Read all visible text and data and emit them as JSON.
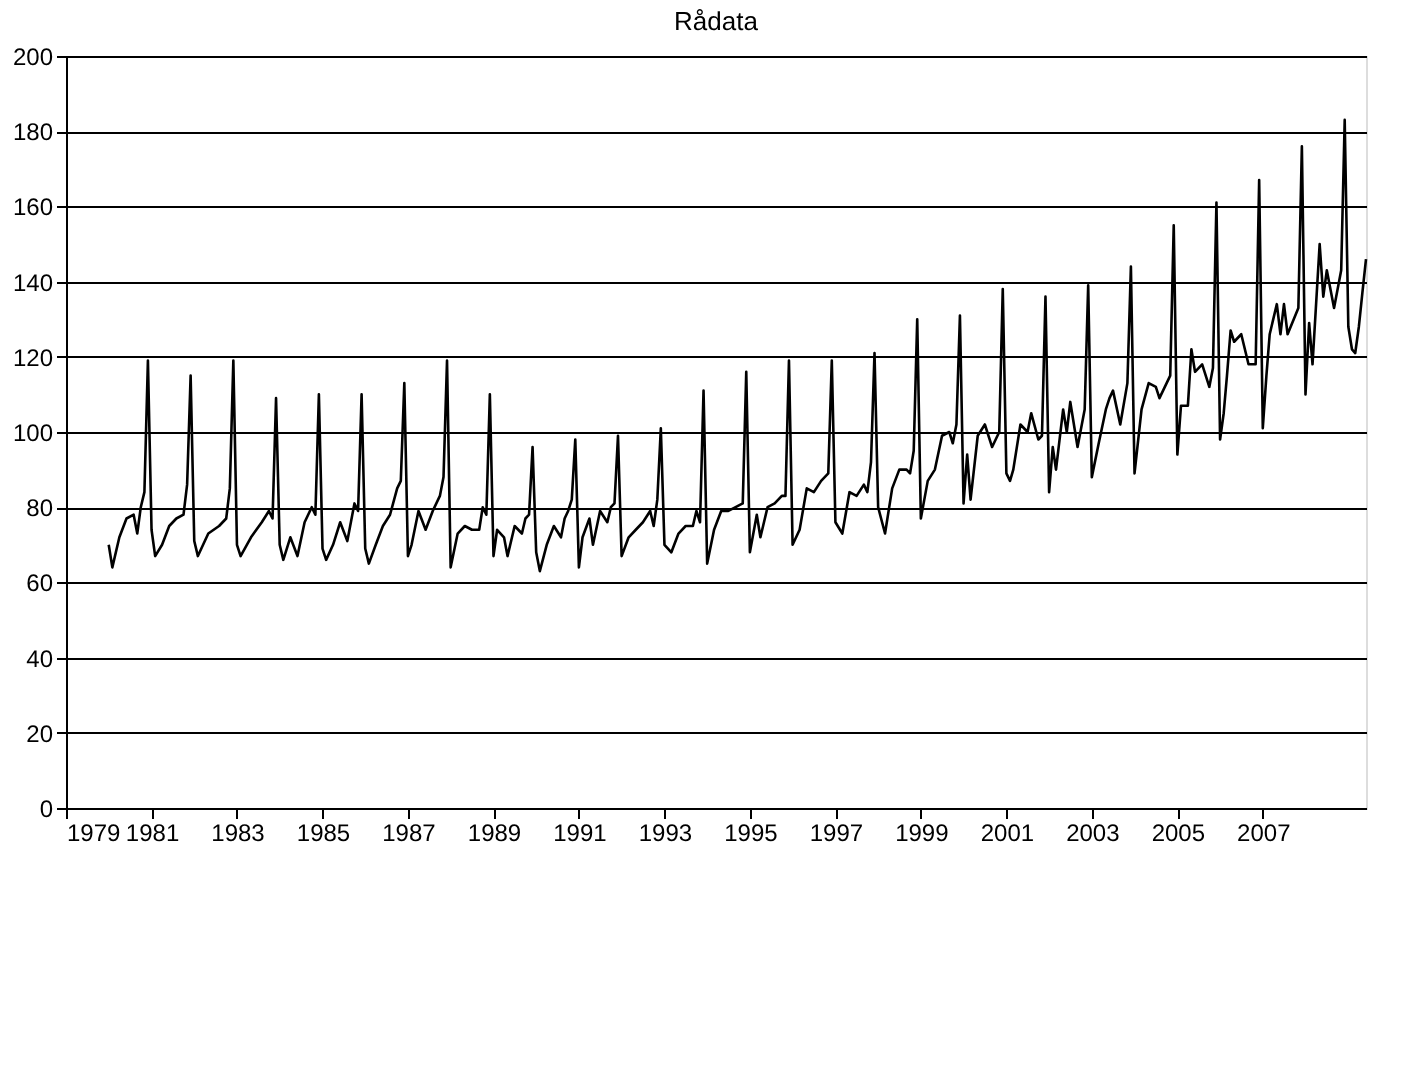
{
  "chart_data": {
    "type": "line",
    "title": "Rådata",
    "x": [
      "1980-01",
      "1980-02",
      "1980-04",
      "1980-06",
      "1980-08",
      "1980-09",
      "1980-10",
      "1980-11",
      "1980-12",
      "1981-01",
      "1981-02",
      "1981-04",
      "1981-06",
      "1981-08",
      "1981-10",
      "1981-11",
      "1981-12",
      "1982-01",
      "1982-02",
      "1982-05",
      "1982-08",
      "1982-10",
      "1982-11",
      "1982-12",
      "1983-01",
      "1983-02",
      "1983-05",
      "1983-08",
      "1983-10",
      "1983-11",
      "1983-12",
      "1984-01",
      "1984-02",
      "1984-04",
      "1984-06",
      "1984-08",
      "1984-10",
      "1984-11",
      "1984-12",
      "1985-01",
      "1985-02",
      "1985-04",
      "1985-06",
      "1985-08",
      "1985-10",
      "1985-11",
      "1985-12",
      "1986-01",
      "1986-02",
      "1986-04",
      "1986-06",
      "1986-08",
      "1986-10",
      "1986-11",
      "1986-12",
      "1987-01",
      "1987-02",
      "1987-04",
      "1987-06",
      "1987-08",
      "1987-10",
      "1987-11",
      "1987-12",
      "1988-01",
      "1988-03",
      "1988-05",
      "1988-07",
      "1988-09",
      "1988-10",
      "1988-11",
      "1988-12",
      "1989-01",
      "1989-02",
      "1989-04",
      "1989-05",
      "1989-07",
      "1989-09",
      "1989-10",
      "1989-11",
      "1989-12",
      "1990-01",
      "1990-02",
      "1990-04",
      "1990-06",
      "1990-08",
      "1990-09",
      "1990-10",
      "1990-11",
      "1990-12",
      "1991-01",
      "1991-02",
      "1991-04",
      "1991-05",
      "1991-07",
      "1991-09",
      "1991-10",
      "1991-11",
      "1991-12",
      "1992-01",
      "1992-03",
      "1992-05",
      "1992-07",
      "1992-09",
      "1992-10",
      "1992-11",
      "1992-12",
      "1993-01",
      "1993-03",
      "1993-05",
      "1993-07",
      "1993-09",
      "1993-10",
      "1993-11",
      "1993-12",
      "1994-01",
      "1994-03",
      "1994-05",
      "1994-07",
      "1994-09",
      "1994-11",
      "1994-12",
      "1995-01",
      "1995-03",
      "1995-04",
      "1995-06",
      "1995-08",
      "1995-10",
      "1995-11",
      "1995-12",
      "1996-01",
      "1996-03",
      "1996-05",
      "1996-07",
      "1996-09",
      "1996-11",
      "1996-12",
      "1997-01",
      "1997-03",
      "1997-05",
      "1997-07",
      "1997-09",
      "1997-10",
      "1997-11",
      "1997-12",
      "1998-01",
      "1998-03",
      "1998-05",
      "1998-07",
      "1998-09",
      "1998-10",
      "1998-11",
      "1998-12",
      "1999-01",
      "1999-03",
      "1999-05",
      "1999-07",
      "1999-09",
      "1999-10",
      "1999-11",
      "1999-12",
      "2000-01",
      "2000-02",
      "2000-03",
      "2000-05",
      "2000-07",
      "2000-09",
      "2000-11",
      "2000-12",
      "2001-01",
      "2001-02",
      "2001-03",
      "2001-05",
      "2001-07",
      "2001-08",
      "2001-10",
      "2001-11",
      "2001-12",
      "2002-01",
      "2002-02",
      "2002-03",
      "2002-05",
      "2002-06",
      "2002-07",
      "2002-09",
      "2002-11",
      "2002-12",
      "2003-01",
      "2003-03",
      "2003-05",
      "2003-06",
      "2003-07",
      "2003-09",
      "2003-11",
      "2003-12",
      "2004-01",
      "2004-03",
      "2004-05",
      "2004-07",
      "2004-08",
      "2004-11",
      "2004-12",
      "2005-01",
      "2005-02",
      "2005-04",
      "2005-05",
      "2005-06",
      "2005-08",
      "2005-10",
      "2005-11",
      "2005-12",
      "2006-01",
      "2006-02",
      "2006-03",
      "2006-04",
      "2006-05",
      "2006-07",
      "2006-09",
      "2006-11",
      "2006-12",
      "2007-01",
      "2007-02",
      "2007-03",
      "2007-05",
      "2007-06",
      "2007-07",
      "2007-08",
      "2007-11",
      "2007-12",
      "2008-01",
      "2008-02",
      "2008-03",
      "2008-05",
      "2008-06",
      "2008-07",
      "2008-09",
      "2008-11",
      "2008-12",
      "2009-01",
      "2009-02",
      "2009-03",
      "2009-04",
      "2009-05",
      "2009-06"
    ],
    "series": [
      {
        "color": "#000000",
        "values": [
          70,
          64,
          72,
          77,
          78,
          73,
          80,
          84,
          119,
          74,
          67,
          70,
          75,
          77,
          78,
          86,
          115,
          71,
          67,
          73,
          75,
          77,
          85,
          119,
          70,
          67,
          72,
          76,
          79,
          77,
          109,
          70,
          66,
          72,
          67,
          76,
          80,
          78,
          110,
          69,
          66,
          70,
          76,
          71,
          81,
          79,
          110,
          69,
          65,
          70,
          75,
          78,
          85,
          87,
          113,
          67,
          70,
          79,
          74,
          79,
          83,
          88,
          119,
          64,
          73,
          75,
          74,
          74,
          80,
          78,
          110,
          67,
          74,
          72,
          67,
          75,
          73,
          77,
          78,
          96,
          68,
          63,
          70,
          75,
          72,
          77,
          79,
          82,
          98,
          64,
          72,
          77,
          70,
          79,
          76,
          80,
          81,
          99,
          67,
          72,
          74,
          76,
          79,
          75,
          82,
          101,
          70,
          68,
          73,
          75,
          75,
          79,
          76,
          111,
          65,
          74,
          79,
          79,
          80,
          81,
          116,
          68,
          78,
          72,
          80,
          81,
          83,
          83,
          119,
          70,
          74,
          85,
          84,
          87,
          89,
          119,
          76,
          73,
          84,
          83,
          86,
          84,
          92,
          121,
          80,
          73,
          85,
          90,
          90,
          89,
          95,
          130,
          77,
          87,
          90,
          99,
          100,
          97,
          102,
          131,
          81,
          94,
          82,
          99,
          102,
          96,
          100,
          138,
          89,
          87,
          90,
          102,
          100,
          105,
          98,
          99,
          136,
          84,
          96,
          90,
          106,
          100,
          108,
          96,
          106,
          139,
          88,
          97,
          106,
          109,
          111,
          102,
          113,
          144,
          89,
          106,
          113,
          112,
          109,
          115,
          155,
          94,
          107,
          107,
          122,
          116,
          118,
          112,
          117,
          161,
          98,
          105,
          115,
          127,
          124,
          126,
          118,
          118,
          167,
          101,
          115,
          126,
          134,
          126,
          134,
          126,
          133,
          176,
          110,
          129,
          118,
          150,
          136,
          143,
          133,
          143,
          183,
          128,
          122,
          121,
          128,
          137,
          146
        ]
      }
    ],
    "xlim": [
      "1979-01",
      "2009-06"
    ],
    "xticks": [
      "1979",
      "1981",
      "1983",
      "1985",
      "1987",
      "1989",
      "1991",
      "1993",
      "1995",
      "1997",
      "1999",
      "2001",
      "2003",
      "2005",
      "2007"
    ],
    "ylim": [
      0,
      200
    ],
    "yticks": [
      0,
      20,
      40,
      60,
      80,
      100,
      120,
      140,
      160,
      180,
      200
    ],
    "grid": "y",
    "line_style": "solid",
    "marker": "none"
  }
}
